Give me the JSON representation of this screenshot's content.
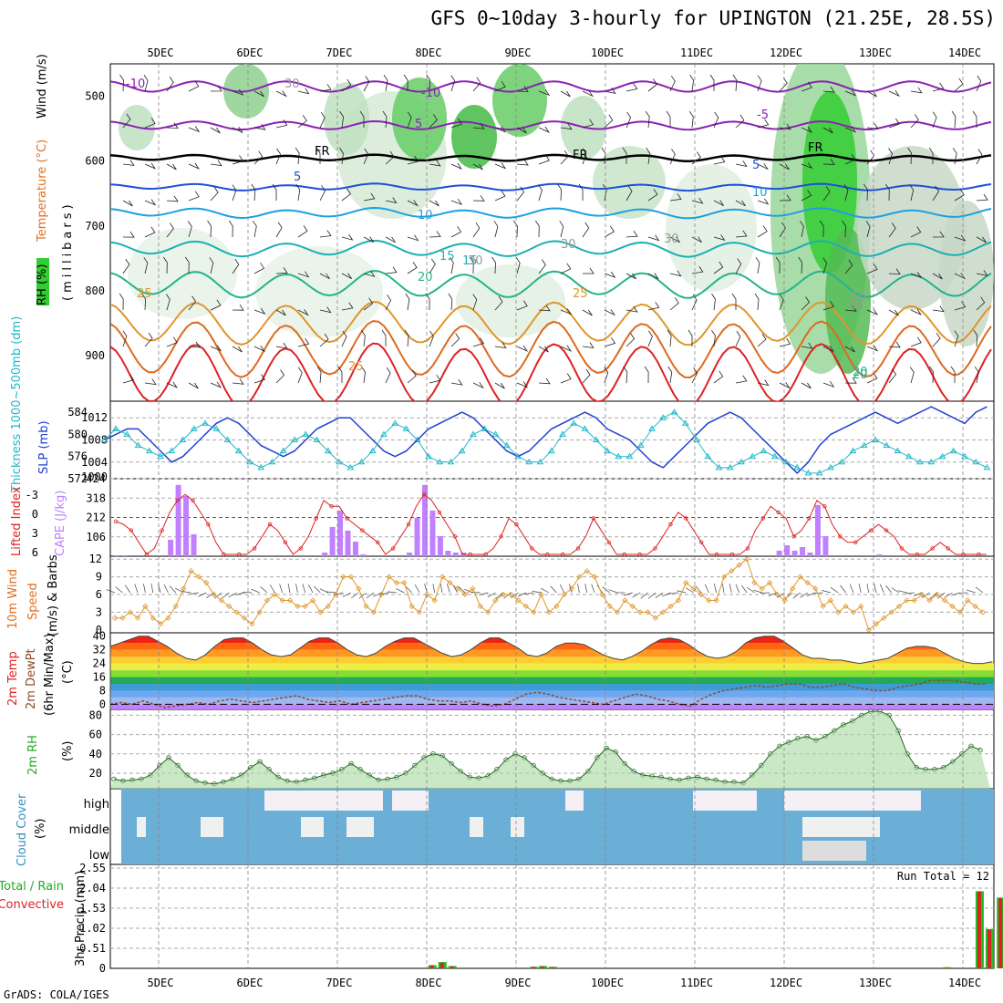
{
  "title": "GFS 0~10day 3-hourly for UPINGTON (21.25E, 28.5S)",
  "credit": "GrADS: COLA/IGES",
  "days": [
    "5DEC",
    "6DEC",
    "7DEC",
    "8DEC",
    "9DEC",
    "10DEC",
    "11DEC",
    "12DEC",
    "13DEC",
    "14DEC"
  ],
  "colors": {
    "rh_green": "#33cc33",
    "temp_purple": "#8a22b3",
    "wind_orange": "#e0962a",
    "cape": "#c080ff",
    "slp": "#2040d0",
    "thick": "#20b8c8",
    "li": "#dd2222",
    "rain": "#dd2222",
    "total": "#22bb22",
    "cloud": "#6baed6"
  },
  "chart_data": [
    {
      "type": "heatmap",
      "name": "upper-air",
      "ylabel_rh": "RH (%)",
      "ylabel_temp": "Temperature (°C)",
      "ylabel_wind": "Wind (m/s)",
      "ylabel_p": "(millibars)",
      "ylim": [
        450,
        970
      ],
      "yticks": [
        500,
        600,
        700,
        800,
        900
      ],
      "contour_labels": [
        "-10",
        "-10",
        "5",
        "-5",
        "FR",
        "FR",
        "FR",
        "5",
        "5",
        "10",
        "10",
        "15",
        "15",
        "20",
        "20",
        "20",
        "25",
        "25",
        "25",
        "30",
        "30",
        "30",
        "30",
        "50",
        "50"
      ]
    },
    {
      "type": "line",
      "name": "slp-thickness",
      "ylabel_left": "Thickness 1000~500mb (dm)",
      "ylabel_right": "SLP (mb)",
      "left_ticks": [
        572,
        576,
        580,
        584
      ],
      "right_ticks": [
        1004,
        1008,
        1012
      ],
      "right_low_tick": "1000",
      "ylim_slp": [
        1001,
        1015
      ],
      "ylim_thick": [
        572,
        586
      ],
      "series": [
        {
          "name": "SLP",
          "values": [
            1008,
            1009,
            1010,
            1010,
            1008,
            1006,
            1004,
            1005,
            1007,
            1009,
            1011,
            1012,
            1011,
            1009,
            1007,
            1006,
            1005,
            1006,
            1008,
            1010,
            1011,
            1012,
            1012,
            1010,
            1008,
            1006,
            1005,
            1006,
            1008,
            1010,
            1011,
            1012,
            1013,
            1012,
            1010,
            1008,
            1006,
            1005,
            1006,
            1008,
            1010,
            1011,
            1012,
            1013,
            1012,
            1010,
            1009,
            1008,
            1006,
            1004,
            1003,
            1005,
            1007,
            1009,
            1011,
            1012,
            1013,
            1012,
            1010,
            1008,
            1006,
            1004,
            1002,
            1004,
            1007,
            1009,
            1010,
            1011,
            1012,
            1013,
            1012,
            1011,
            1012,
            1013,
            1014,
            1013,
            1012,
            1011,
            1013,
            1014,
            1015
          ]
        },
        {
          "name": "Thickness",
          "values": [
            579,
            581,
            580,
            578,
            577,
            576,
            577,
            579,
            581,
            582,
            581,
            579,
            577,
            575,
            574,
            575,
            577,
            579,
            580,
            579,
            577,
            575,
            574,
            575,
            577,
            580,
            582,
            581,
            579,
            576,
            575,
            575,
            577,
            580,
            581,
            580,
            578,
            576,
            575,
            575,
            577,
            580,
            582,
            581,
            579,
            577,
            576,
            576,
            578,
            581,
            583,
            584,
            582,
            579,
            576,
            574,
            574,
            575,
            576,
            577,
            576,
            575,
            574,
            573,
            573,
            574,
            575,
            577,
            578,
            579,
            578,
            577,
            576,
            575,
            575,
            576,
            577,
            576,
            575,
            574,
            574
          ]
        }
      ]
    },
    {
      "type": "bar",
      "name": "cape-li",
      "ylabel_li": "Lifted Index",
      "ylabel_cape": "CAPE (J/kg)",
      "li_ticks": [
        "-3",
        "0",
        "3",
        "6"
      ],
      "cape_ticks": [
        "106",
        "212",
        "318",
        "424"
      ],
      "ylim_cape": [
        0,
        424
      ],
      "series": [
        {
          "name": "CAPE",
          "values": [
            5,
            5,
            0,
            0,
            0,
            0,
            0,
            90,
            390,
            330,
            120,
            0,
            0,
            0,
            0,
            0,
            0,
            0,
            0,
            0,
            0,
            0,
            0,
            0,
            0,
            0,
            0,
            20,
            160,
            250,
            140,
            80,
            10,
            0,
            0,
            0,
            0,
            0,
            20,
            210,
            390,
            250,
            110,
            30,
            20,
            20,
            0,
            0,
            0,
            0,
            0,
            0,
            0,
            0,
            0,
            0,
            0,
            0,
            0,
            0,
            0,
            0,
            0,
            0,
            0,
            0,
            0,
            0,
            0,
            0,
            0,
            0,
            0,
            0,
            0,
            0,
            0,
            0,
            0,
            0,
            0,
            0,
            0,
            0,
            0,
            0,
            30,
            60,
            30,
            50,
            20,
            280,
            110,
            0,
            0,
            0,
            0,
            0,
            0,
            10,
            0,
            0,
            0,
            0,
            0,
            0,
            0,
            0,
            0,
            0,
            0,
            0,
            0,
            0,
            0,
            0,
            0
          ]
        },
        {
          "name": "Lifted Index",
          "values": [
            0.5,
            1,
            2,
            4,
            6,
            5,
            2,
            -1,
            -3,
            -4,
            -3,
            -1,
            1,
            4,
            6,
            6,
            6,
            6,
            5,
            3,
            1,
            2,
            4,
            6,
            5,
            3,
            0,
            -3,
            -2,
            -2,
            0,
            1,
            2,
            3,
            4,
            6,
            5,
            3,
            1,
            -2,
            -4,
            -3,
            -1,
            1,
            3,
            6,
            6,
            6,
            6,
            5,
            3,
            0,
            1,
            3,
            5,
            6,
            6,
            6,
            6,
            6,
            5,
            3,
            0,
            2,
            4,
            6,
            6,
            6,
            6,
            6,
            5,
            3,
            1,
            -1,
            0,
            2,
            4,
            6,
            6,
            6,
            6,
            6,
            5,
            2,
            0,
            -2,
            -1,
            0,
            3,
            2,
            0,
            -3,
            -2,
            1,
            3,
            4,
            4,
            3,
            2,
            1,
            2,
            3,
            5,
            6,
            6,
            6,
            5,
            4,
            5,
            6,
            6,
            6,
            6,
            6,
            6,
            6,
            6
          ]
        }
      ]
    },
    {
      "type": "line",
      "name": "wind10m",
      "ylabel": "10m Wind Speed (m/s) & Barbs",
      "ylabel_1": "10m Wind",
      "ylabel_2": "Speed",
      "ylabel_3": "(m/s) & Barbs",
      "yticks": [
        0,
        3,
        6,
        9,
        12
      ],
      "ylim": [
        -0.5,
        12.5
      ],
      "values": [
        2,
        2,
        3,
        2,
        4,
        2,
        1,
        2,
        4,
        7,
        10,
        9,
        8,
        6,
        5,
        4,
        3,
        2,
        1,
        3,
        5,
        6,
        5,
        5,
        4,
        4,
        5,
        3,
        4,
        6,
        9,
        9,
        7,
        4,
        3,
        6,
        9,
        8,
        8,
        4,
        3,
        6,
        5,
        9,
        8,
        7,
        6,
        7,
        4,
        3,
        5,
        6,
        6,
        5,
        4,
        3,
        6,
        3,
        4,
        6,
        7,
        9,
        10,
        9,
        6,
        4,
        3,
        5,
        4,
        3,
        3,
        2,
        3,
        4,
        5,
        8,
        7,
        6,
        5,
        5,
        9,
        10,
        11,
        12,
        8,
        7,
        8,
        6,
        5,
        7,
        9,
        8,
        7,
        4,
        5,
        3,
        4,
        3,
        4,
        0,
        1,
        2,
        3,
        4,
        5,
        5,
        6,
        5,
        6,
        5,
        4,
        3,
        5,
        4,
        3
      ]
    },
    {
      "type": "area",
      "name": "temperature",
      "ylabel": "2m Temp 2m DewPt (6hr Min/Max) (°C)",
      "ylabel_1": "2m Temp",
      "ylabel_2": "2m DewPt",
      "ylabel_3": "(6hr Min/Max)",
      "ylabel_4": "(°C)",
      "yticks": [
        0,
        8,
        16,
        24,
        32,
        40
      ],
      "ylim": [
        -3,
        42
      ],
      "series": [
        {
          "name": "Temp",
          "values": [
            34,
            36,
            38,
            40,
            40,
            37,
            34,
            30,
            27,
            26,
            29,
            34,
            38,
            39,
            39,
            36,
            32,
            29,
            28,
            29,
            33,
            37,
            39,
            39,
            36,
            32,
            29,
            28,
            30,
            34,
            37,
            39,
            39,
            36,
            33,
            30,
            28,
            29,
            32,
            36,
            39,
            39,
            36,
            33,
            29,
            28,
            30,
            34,
            36,
            36,
            35,
            32,
            29,
            27,
            26,
            28,
            31,
            35,
            38,
            39,
            38,
            35,
            31,
            28,
            27,
            28,
            31,
            36,
            39,
            40,
            40,
            37,
            33,
            29,
            27,
            27,
            26,
            26,
            25,
            24,
            25,
            26,
            27,
            30,
            33,
            34,
            34,
            33,
            30,
            27,
            25,
            24,
            24,
            25
          ]
        },
        {
          "name": "DewPt",
          "values": [
            0,
            1,
            0,
            2,
            0,
            -2,
            -1,
            0,
            1,
            0,
            2,
            3,
            2,
            1,
            2,
            3,
            4,
            5,
            3,
            2,
            1,
            2,
            0,
            1,
            2,
            3,
            4,
            5,
            5,
            3,
            2,
            2,
            1,
            2,
            0,
            -1,
            0,
            3,
            6,
            7,
            6,
            4,
            3,
            2,
            1,
            0,
            2,
            4,
            6,
            5,
            3,
            2,
            0,
            -1,
            3,
            6,
            8,
            9,
            10,
            11,
            10,
            11,
            12,
            12,
            10,
            10,
            11,
            12,
            10,
            9,
            8,
            8,
            10,
            11,
            12,
            14,
            14,
            14,
            13,
            12,
            12
          ]
        }
      ]
    },
    {
      "type": "area",
      "name": "rh2m",
      "ylabel": "2m RH (%)",
      "ylabel_1": "2m RH",
      "ylabel_2": "(%)",
      "yticks": [
        20,
        40,
        60,
        80
      ],
      "ylim": [
        4,
        86
      ],
      "values": [
        14,
        12,
        13,
        14,
        18,
        28,
        36,
        28,
        18,
        12,
        10,
        9,
        11,
        14,
        18,
        26,
        32,
        24,
        16,
        12,
        11,
        13,
        15,
        18,
        20,
        24,
        30,
        24,
        18,
        13,
        14,
        16,
        20,
        28,
        36,
        40,
        38,
        30,
        22,
        16,
        15,
        17,
        24,
        34,
        40,
        36,
        28,
        20,
        14,
        12,
        12,
        14,
        22,
        36,
        46,
        42,
        30,
        22,
        18,
        17,
        16,
        14,
        13,
        15,
        16,
        14,
        13,
        11,
        11,
        10,
        18,
        28,
        40,
        48,
        52,
        56,
        58,
        54,
        58,
        64,
        70,
        74,
        80,
        84,
        84,
        80,
        64,
        40,
        26,
        24,
        24,
        26,
        32,
        40,
        48,
        44
      ]
    },
    {
      "type": "heatmap",
      "name": "cloud-cover",
      "ylabel": "Cloud Cover (%)",
      "ylabel_1": "Cloud Cover",
      "ylabel_2": "(%)",
      "levels": [
        "high",
        "middle",
        "low"
      ]
    },
    {
      "type": "bar",
      "name": "precip",
      "ylabel": "3hr Precip (mm)",
      "ylabel_left_1": "Total / Rain",
      "ylabel_left_2": "Convective",
      "yticks": [
        "0",
        "0.51",
        "1.02",
        "1.53",
        "2.04",
        "2.55"
      ],
      "ylim": [
        0,
        2.55
      ],
      "run_total": "Run Total = 12",
      "bars": [
        {
          "time": 29.3,
          "total": 0.08,
          "conv": 0.08
        },
        {
          "time": 30.2,
          "total": 0.16,
          "conv": 0.14
        },
        {
          "time": 31.1,
          "total": 0.06,
          "conv": 0.05
        },
        {
          "time": 38.4,
          "total": 0.04,
          "conv": 0.04
        },
        {
          "time": 39.2,
          "total": 0.06,
          "conv": 0.05
        },
        {
          "time": 40.1,
          "total": 0.04,
          "conv": 0.03
        },
        {
          "time": 75.4,
          "total": 0.03,
          "conv": 0.02
        },
        {
          "time": 78.3,
          "total": 1.96,
          "conv": 1.96
        },
        {
          "time": 79.2,
          "total": 1.0,
          "conv": 0.98
        },
        {
          "time": 80.2,
          "total": 1.8,
          "conv": 1.78
        },
        {
          "time": 81.1,
          "total": 2.16,
          "conv": 2.1
        },
        {
          "time": 82.0,
          "total": 1.6,
          "conv": 1.55
        },
        {
          "time": 82.9,
          "total": 2.4,
          "conv": 2.2
        },
        {
          "time": 83.7,
          "total": 0.2,
          "conv": 0.0
        }
      ]
    }
  ]
}
